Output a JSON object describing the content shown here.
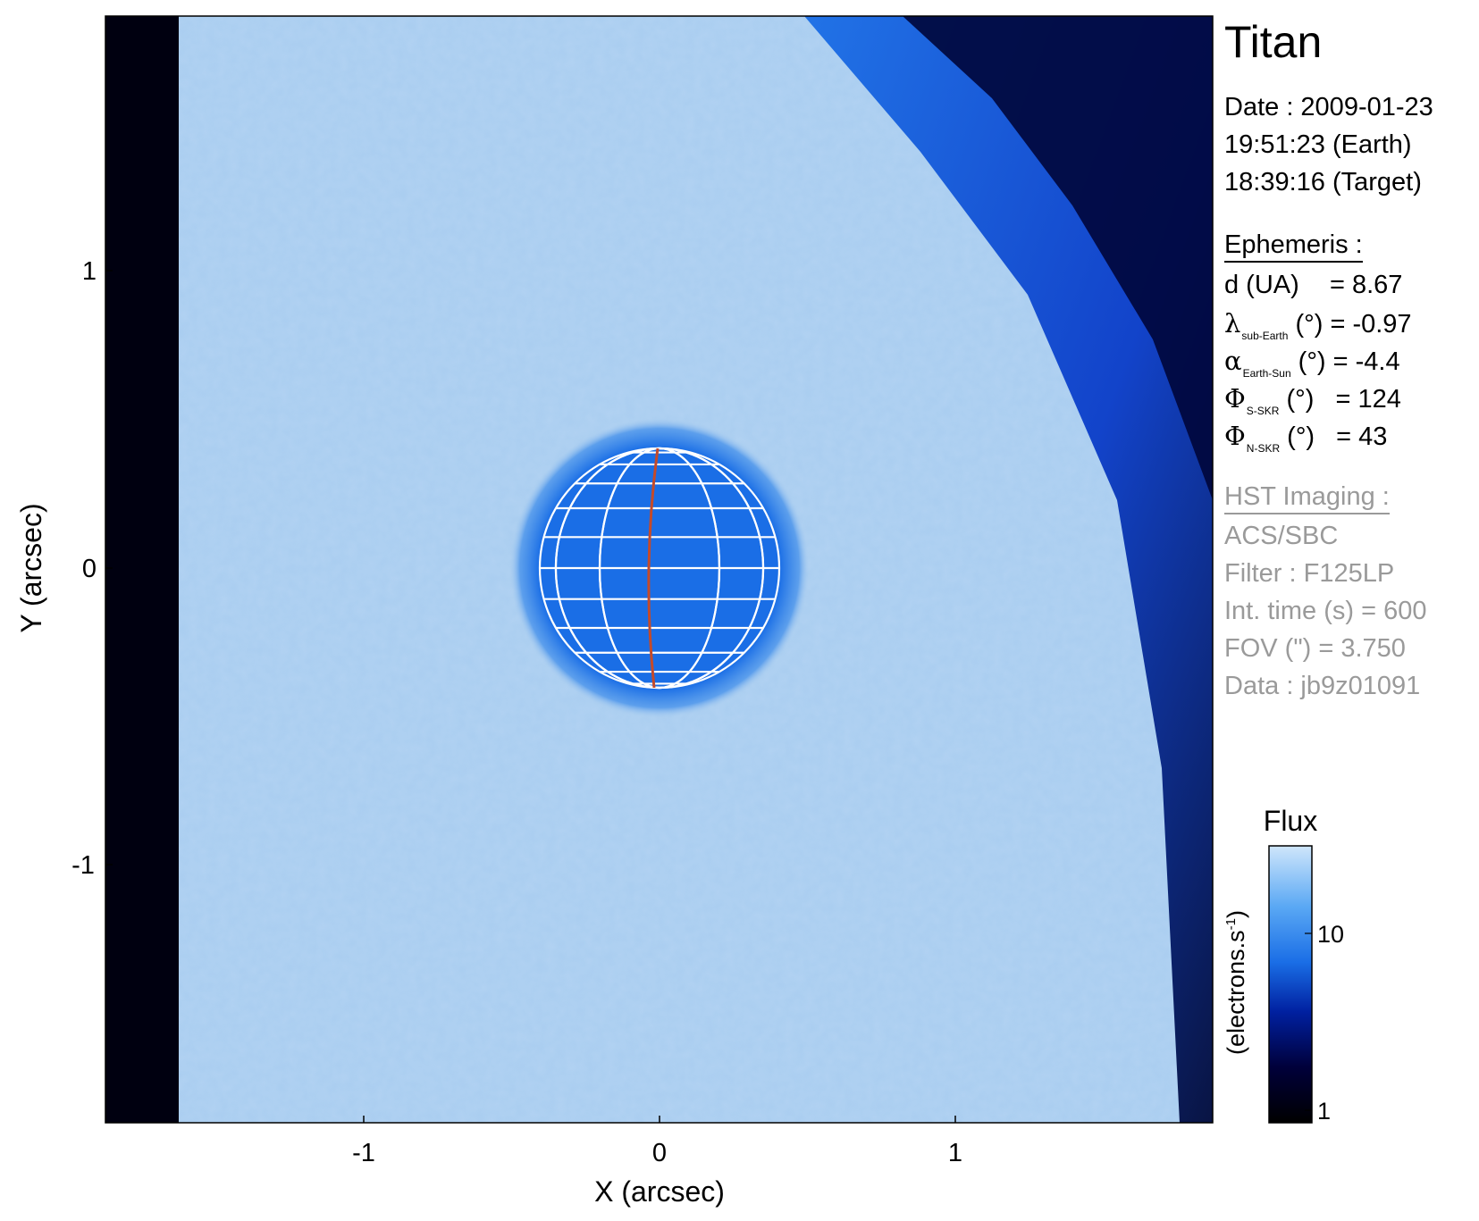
{
  "image_panel": {
    "target": "Titan",
    "x_axis": {
      "label": "X (arcsec)",
      "ticks": [
        "-1",
        "0",
        "1"
      ]
    },
    "y_axis": {
      "label": "Y (arcsec)",
      "ticks": [
        "1",
        "0",
        "-1"
      ]
    },
    "field_of_view_arcsec": 3.75,
    "disk_color": "#1a6ee6",
    "background_color": "#a9cdf0",
    "grid_color": "#ffffff",
    "meridian_color": "#c44a2a"
  },
  "info": {
    "title": "Titan",
    "date_line": "Date : 2009-01-23",
    "earth_time": "19:51:23 (Earth)",
    "target_time": "18:39:16 (Target)",
    "ephemeris_header": "Ephemeris :",
    "ephemeris": [
      {
        "symbol": "d",
        "sub": "",
        "label": "d (UA)",
        "unit": "",
        "value": "= 8.67"
      },
      {
        "symbol": "λ",
        "sub": "sub-Earth",
        "unit": " (°)",
        "value": "= -0.97"
      },
      {
        "symbol": "α",
        "sub": "Earth-Sun",
        "unit": " (°)",
        "value": "= -4.4"
      },
      {
        "symbol": "Φ",
        "sub": "S-SKR",
        "unit": " (°)",
        "value": "= 124"
      },
      {
        "symbol": "Φ",
        "sub": "N-SKR",
        "unit": " (°)",
        "value": "= 43"
      }
    ],
    "hst_header": "HST Imaging :",
    "instrument": "ACS/SBC",
    "filter": "Filter : F125LP",
    "int_time": "Int. time (s) = 600",
    "fov": "FOV (\") = 3.750",
    "data_id": "Data : jb9z01091"
  },
  "colorbar": {
    "title": "Flux",
    "label_main": "(electrons.s",
    "label_sup": "-1",
    "label_close": ")",
    "ticks": [
      "10",
      "1"
    ],
    "colors": [
      "#000000",
      "#00003a",
      "#0020a0",
      "#1a6ee6",
      "#5aa8f4",
      "#cfe6fb"
    ]
  }
}
